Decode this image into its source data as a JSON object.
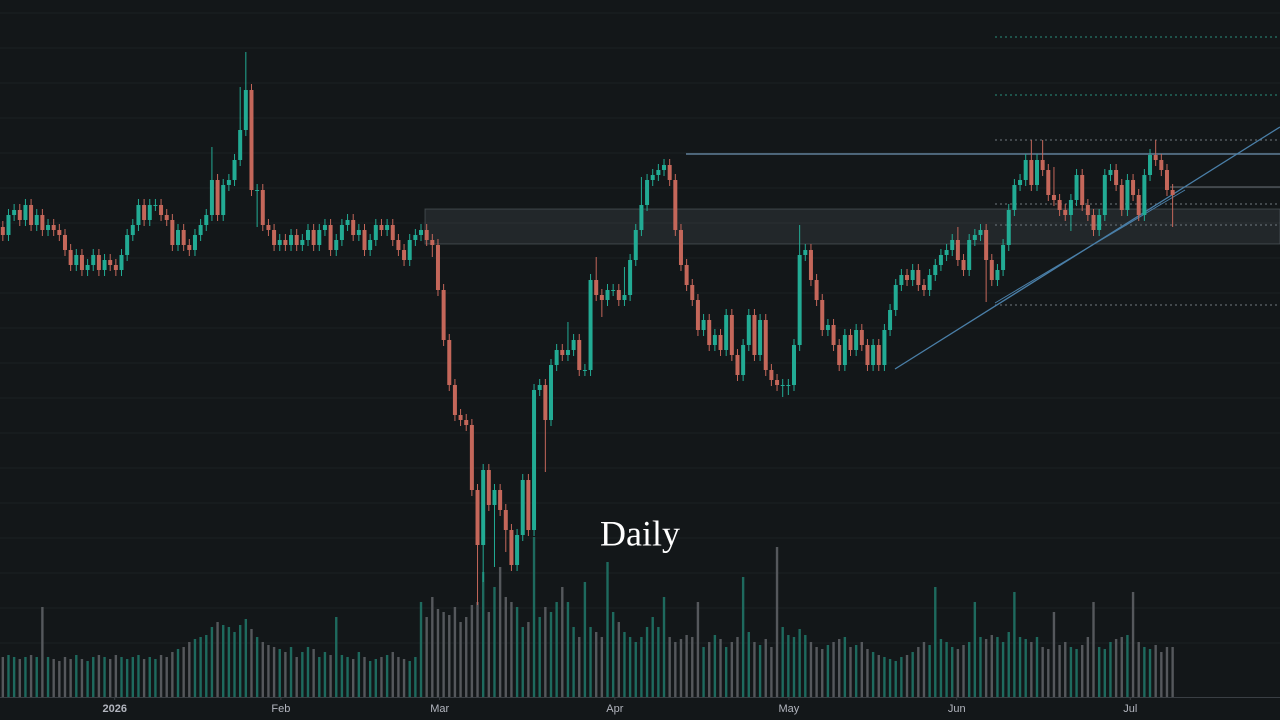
{
  "chart_data": {
    "type": "candlestick",
    "title": "Daily",
    "up_color": "#22ab94",
    "down_color": "#c4675a",
    "volume_up_color": "#1e6a5e",
    "volume_down_color": "#55585c",
    "xlim": [
      -0.5,
      226
    ],
    "ylim": [
      0,
      697
    ],
    "volume_ylim": [
      0,
      697
    ],
    "xticks": [
      {
        "value": 19.8,
        "label": "2026"
      },
      {
        "value": 49.2,
        "label": "Feb"
      },
      {
        "value": 77.3,
        "label": "Mar"
      },
      {
        "value": 108.3,
        "label": "Apr"
      },
      {
        "value": 139.1,
        "label": "May"
      },
      {
        "value": 168.8,
        "label": "Jun"
      },
      {
        "value": 199.5,
        "label": "Jul"
      }
    ],
    "open": [
      470,
      462,
      482,
      487,
      477,
      492,
      472,
      482,
      467,
      472,
      467,
      462,
      447,
      432,
      442,
      427,
      432,
      442,
      427,
      437,
      432,
      427,
      442,
      462,
      472,
      492,
      477,
      492,
      492,
      482,
      477,
      452,
      467,
      452,
      447,
      462,
      472,
      482,
      517,
      482,
      512,
      517,
      537,
      567,
      607,
      507,
      507,
      472,
      467,
      452,
      457,
      452,
      462,
      452,
      457,
      467,
      452,
      467,
      472,
      447,
      457,
      472,
      477,
      462,
      467,
      447,
      457,
      472,
      467,
      472,
      457,
      447,
      437,
      457,
      462,
      467,
      457,
      452,
      407,
      357,
      312,
      282,
      277,
      272,
      207,
      152,
      227,
      192,
      207,
      187,
      167,
      132,
      162,
      217,
      167,
      307,
      312,
      277,
      332,
      347,
      342,
      347,
      357,
      327,
      327,
      417,
      402,
      397,
      407,
      407,
      397,
      402,
      437,
      467,
      492,
      517,
      522,
      527,
      532,
      517,
      467,
      432,
      412,
      397,
      367,
      377,
      352,
      362,
      347,
      382,
      342,
      322,
      352,
      382,
      342,
      377,
      327,
      317,
      312,
      312,
      312,
      352,
      442,
      447,
      417,
      397,
      367,
      372,
      352,
      332,
      362,
      347,
      367,
      352,
      332,
      352,
      332,
      367,
      387,
      412,
      422,
      417,
      427,
      412,
      407,
      422,
      432,
      442,
      447,
      457,
      437,
      427,
      457,
      462,
      467,
      437,
      417,
      427,
      452,
      487,
      512,
      517,
      537,
      512,
      537,
      527,
      502,
      497,
      487,
      482,
      497,
      522,
      492,
      482,
      467,
      482,
      522,
      527,
      512,
      487,
      517,
      502,
      482,
      522,
      542,
      537,
      527,
      507
    ],
    "high": [
      476,
      488,
      493,
      493,
      498,
      498,
      488,
      488,
      478,
      478,
      473,
      468,
      453,
      448,
      448,
      438,
      448,
      448,
      443,
      443,
      438,
      448,
      468,
      478,
      498,
      498,
      498,
      498,
      498,
      488,
      483,
      473,
      473,
      458,
      468,
      478,
      488,
      550,
      523,
      518,
      523,
      543,
      610,
      645,
      613,
      513,
      513,
      478,
      473,
      463,
      463,
      468,
      468,
      463,
      473,
      473,
      473,
      478,
      478,
      463,
      478,
      483,
      483,
      473,
      473,
      463,
      478,
      478,
      478,
      478,
      463,
      453,
      463,
      468,
      473,
      473,
      463,
      458,
      413,
      363,
      318,
      288,
      283,
      278,
      213,
      233,
      233,
      213,
      213,
      193,
      173,
      168,
      223,
      223,
      313,
      318,
      318,
      338,
      353,
      353,
      375,
      363,
      363,
      333,
      423,
      440,
      408,
      413,
      413,
      413,
      430,
      443,
      473,
      520,
      523,
      528,
      533,
      538,
      538,
      523,
      473,
      438,
      418,
      403,
      383,
      383,
      368,
      368,
      388,
      388,
      348,
      358,
      388,
      388,
      383,
      383,
      333,
      323,
      318,
      318,
      358,
      472,
      453,
      453,
      423,
      403,
      378,
      378,
      358,
      368,
      368,
      373,
      373,
      358,
      358,
      358,
      373,
      393,
      418,
      428,
      428,
      433,
      433,
      418,
      428,
      438,
      448,
      453,
      463,
      470,
      443,
      463,
      468,
      473,
      473,
      443,
      433,
      458,
      493,
      518,
      523,
      543,
      557,
      543,
      557,
      533,
      530,
      503,
      493,
      503,
      528,
      528,
      498,
      488,
      488,
      528,
      533,
      533,
      518,
      523,
      523,
      508,
      528,
      548,
      557,
      543,
      533,
      513
    ],
    "low": [
      456,
      456,
      476,
      471,
      471,
      466,
      466,
      461,
      461,
      461,
      456,
      441,
      426,
      426,
      421,
      421,
      426,
      421,
      421,
      426,
      421,
      421,
      436,
      456,
      466,
      471,
      471,
      486,
      476,
      471,
      446,
      446,
      446,
      441,
      441,
      456,
      466,
      476,
      476,
      476,
      506,
      511,
      531,
      561,
      501,
      470,
      466,
      461,
      446,
      446,
      446,
      446,
      446,
      446,
      451,
      446,
      446,
      461,
      441,
      441,
      451,
      466,
      456,
      456,
      441,
      441,
      451,
      461,
      461,
      451,
      441,
      431,
      431,
      451,
      456,
      451,
      440,
      401,
      351,
      306,
      276,
      271,
      266,
      201,
      92,
      115,
      186,
      130,
      181,
      145,
      126,
      126,
      156,
      161,
      161,
      301,
      225,
      271,
      326,
      336,
      336,
      341,
      321,
      321,
      321,
      396,
      380,
      391,
      401,
      391,
      391,
      396,
      431,
      461,
      486,
      511,
      516,
      521,
      511,
      461,
      426,
      406,
      391,
      361,
      361,
      346,
      346,
      341,
      341,
      336,
      316,
      316,
      346,
      336,
      336,
      321,
      311,
      306,
      300,
      302,
      306,
      346,
      436,
      411,
      391,
      361,
      361,
      346,
      326,
      326,
      341,
      341,
      346,
      326,
      326,
      326,
      326,
      361,
      381,
      406,
      411,
      411,
      406,
      401,
      401,
      416,
      426,
      436,
      441,
      431,
      421,
      421,
      451,
      456,
      395,
      411,
      411,
      421,
      446,
      481,
      506,
      511,
      506,
      506,
      521,
      496,
      491,
      481,
      476,
      466,
      491,
      486,
      476,
      461,
      461,
      476,
      516,
      506,
      481,
      481,
      496,
      476,
      476,
      516,
      531,
      521,
      501,
      470
    ],
    "close": [
      462,
      482,
      487,
      477,
      492,
      472,
      482,
      467,
      472,
      467,
      462,
      447,
      432,
      442,
      427,
      432,
      442,
      427,
      437,
      432,
      427,
      442,
      462,
      472,
      492,
      477,
      492,
      492,
      482,
      477,
      452,
      467,
      452,
      447,
      462,
      472,
      482,
      517,
      482,
      512,
      517,
      537,
      567,
      607,
      507,
      507,
      472,
      467,
      452,
      457,
      452,
      462,
      452,
      457,
      467,
      452,
      467,
      472,
      447,
      457,
      472,
      477,
      462,
      467,
      447,
      457,
      472,
      467,
      472,
      457,
      447,
      437,
      457,
      462,
      467,
      457,
      452,
      407,
      357,
      312,
      282,
      277,
      272,
      207,
      152,
      227,
      192,
      207,
      187,
      167,
      132,
      162,
      217,
      167,
      307,
      312,
      277,
      332,
      347,
      342,
      347,
      357,
      327,
      327,
      417,
      402,
      397,
      407,
      407,
      397,
      402,
      437,
      467,
      492,
      517,
      522,
      527,
      532,
      517,
      467,
      432,
      412,
      397,
      367,
      377,
      352,
      362,
      347,
      382,
      342,
      322,
      352,
      382,
      342,
      377,
      327,
      317,
      312,
      312,
      312,
      352,
      442,
      447,
      417,
      397,
      367,
      372,
      352,
      332,
      362,
      347,
      367,
      352,
      332,
      352,
      332,
      367,
      387,
      412,
      422,
      417,
      427,
      412,
      407,
      422,
      432,
      442,
      447,
      457,
      437,
      427,
      457,
      462,
      467,
      437,
      417,
      427,
      452,
      487,
      512,
      517,
      537,
      512,
      537,
      527,
      502,
      497,
      487,
      482,
      497,
      522,
      492,
      482,
      467,
      482,
      522,
      527,
      512,
      487,
      517,
      502,
      482,
      522,
      542,
      537,
      527,
      507,
      502
    ],
    "volume": [
      40,
      42,
      40,
      38,
      40,
      42,
      40,
      90,
      40,
      38,
      36,
      40,
      38,
      42,
      38,
      36,
      40,
      42,
      40,
      38,
      42,
      40,
      38,
      40,
      42,
      38,
      40,
      38,
      42,
      40,
      45,
      48,
      50,
      55,
      58,
      60,
      62,
      70,
      75,
      72,
      70,
      65,
      72,
      78,
      68,
      60,
      55,
      52,
      50,
      48,
      45,
      50,
      40,
      45,
      50,
      48,
      40,
      45,
      42,
      80,
      42,
      40,
      38,
      45,
      40,
      36,
      38,
      40,
      42,
      45,
      40,
      38,
      36,
      40,
      95,
      80,
      100,
      88,
      85,
      82,
      90,
      75,
      80,
      92,
      95,
      125,
      85,
      110,
      130,
      100,
      95,
      90,
      70,
      75,
      160,
      80,
      90,
      85,
      95,
      110,
      95,
      70,
      60,
      115,
      70,
      65,
      60,
      135,
      85,
      75,
      65,
      60,
      55,
      60,
      70,
      80,
      70,
      100,
      60,
      55,
      58,
      62,
      60,
      95,
      50,
      55,
      62,
      58,
      50,
      55,
      60,
      120,
      65,
      55,
      52,
      58,
      50,
      150,
      70,
      62,
      60,
      68,
      62,
      55,
      50,
      48,
      52,
      55,
      58,
      60,
      50,
      52,
      55,
      48,
      45,
      42,
      40,
      38,
      36,
      40,
      42,
      45,
      50,
      55,
      52,
      110,
      58,
      55,
      50,
      48,
      52,
      55,
      95,
      60,
      58,
      62,
      60,
      55,
      65,
      105,
      60,
      58,
      55,
      60,
      50,
      48,
      85,
      52,
      55,
      50,
      48,
      52,
      60,
      95,
      50,
      48,
      55,
      58,
      60,
      62,
      105,
      55,
      50,
      48,
      52,
      45,
      50,
      50
    ]
  }
}
